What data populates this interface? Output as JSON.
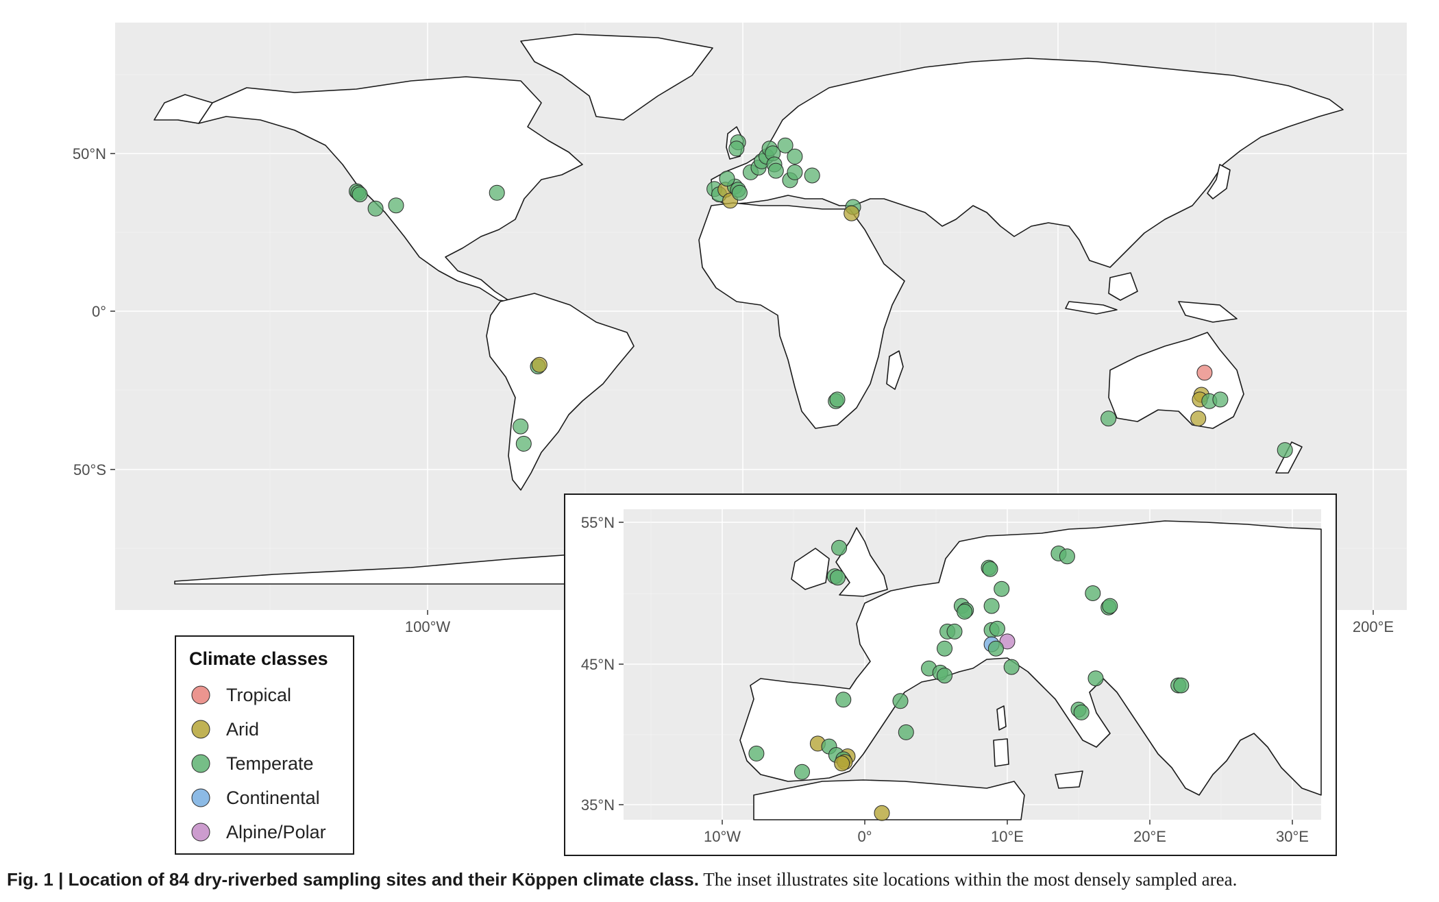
{
  "map": {
    "lat_labels": [
      "50°N",
      "0°",
      "50°S"
    ],
    "lon_labels": [
      "100°W",
      "200°E"
    ]
  },
  "inset": {
    "lat_labels": [
      "55°N",
      "45°N",
      "35°N"
    ],
    "lon_labels": [
      "10°W",
      "0°",
      "10°E",
      "20°E",
      "30°E"
    ]
  },
  "legend": {
    "title": "Climate classes",
    "items": [
      {
        "label": "Tropical",
        "color": "#E8837B"
      },
      {
        "label": "Arid",
        "color": "#B5A537"
      },
      {
        "label": "Temperate",
        "color": "#5EB372"
      },
      {
        "label": "Continental",
        "color": "#78AEE0"
      },
      {
        "label": "Alpine/Polar",
        "color": "#C38BC5"
      }
    ]
  },
  "caption": {
    "bold": "Fig. 1 | Location of 84 dry-riverbed sampling sites and their Köppen climate class.",
    "rest": " The inset illustrates site locations within the most densely sampled area."
  },
  "chart_data": {
    "type": "map",
    "main_map": {
      "lon_range": [
        -180,
        210
      ],
      "lat_range": [
        -90,
        90
      ],
      "sites": [
        {
          "lon": -122.5,
          "lat": 38.0,
          "class": "Temperate"
        },
        {
          "lon": -122.0,
          "lat": 37.5,
          "class": "Temperate"
        },
        {
          "lon": -121.5,
          "lat": 37.0,
          "class": "Temperate"
        },
        {
          "lon": -116.5,
          "lat": 32.5,
          "class": "Temperate"
        },
        {
          "lon": -110.0,
          "lat": 33.5,
          "class": "Temperate"
        },
        {
          "lon": -78.0,
          "lat": 37.5,
          "class": "Temperate"
        },
        {
          "lon": -65.0,
          "lat": -17.5,
          "class": "Temperate"
        },
        {
          "lon": -64.5,
          "lat": -17.0,
          "class": "Arid"
        },
        {
          "lon": -70.5,
          "lat": -36.5,
          "class": "Temperate"
        },
        {
          "lon": -69.5,
          "lat": -42.0,
          "class": "Temperate"
        },
        {
          "lon": -9.0,
          "lat": 38.7,
          "class": "Temperate"
        },
        {
          "lon": -7.5,
          "lat": 37.0,
          "class": "Temperate"
        },
        {
          "lon": -5.5,
          "lat": 38.5,
          "class": "Arid"
        },
        {
          "lon": -4.0,
          "lat": 35.0,
          "class": "Arid"
        },
        {
          "lon": -2.5,
          "lat": 39.5,
          "class": "Temperate"
        },
        {
          "lon": -1.5,
          "lat": 38.5,
          "class": "Temperate"
        },
        {
          "lon": -1.0,
          "lat": 37.5,
          "class": "Temperate"
        },
        {
          "lon": -5.0,
          "lat": 42.0,
          "class": "Temperate"
        },
        {
          "lon": -1.5,
          "lat": 53.5,
          "class": "Temperate"
        },
        {
          "lon": -2.0,
          "lat": 51.5,
          "class": "Temperate"
        },
        {
          "lon": 2.5,
          "lat": 44.0,
          "class": "Temperate"
        },
        {
          "lon": 5.0,
          "lat": 45.5,
          "class": "Temperate"
        },
        {
          "lon": 6.0,
          "lat": 47.5,
          "class": "Temperate"
        },
        {
          "lon": 7.5,
          "lat": 49.0,
          "class": "Temperate"
        },
        {
          "lon": 8.5,
          "lat": 51.5,
          "class": "Temperate"
        },
        {
          "lon": 9.5,
          "lat": 50.0,
          "class": "Temperate"
        },
        {
          "lon": 13.5,
          "lat": 52.5,
          "class": "Temperate"
        },
        {
          "lon": 16.5,
          "lat": 49.0,
          "class": "Temperate"
        },
        {
          "lon": 10.0,
          "lat": 46.5,
          "class": "Temperate"
        },
        {
          "lon": 10.5,
          "lat": 44.5,
          "class": "Temperate"
        },
        {
          "lon": 15.0,
          "lat": 41.5,
          "class": "Temperate"
        },
        {
          "lon": 16.5,
          "lat": 44.0,
          "class": "Temperate"
        },
        {
          "lon": 22.0,
          "lat": 43.0,
          "class": "Temperate"
        },
        {
          "lon": 35.0,
          "lat": 33.0,
          "class": "Temperate"
        },
        {
          "lon": 34.5,
          "lat": 31.0,
          "class": "Arid"
        },
        {
          "lon": 29.5,
          "lat": -28.5,
          "class": "Temperate"
        },
        {
          "lon": 30.0,
          "lat": -28.0,
          "class": "Temperate"
        },
        {
          "lon": 116.0,
          "lat": -34.0,
          "class": "Temperate"
        },
        {
          "lon": 146.5,
          "lat": -19.5,
          "class": "Tropical"
        },
        {
          "lon": 145.5,
          "lat": -26.5,
          "class": "Arid"
        },
        {
          "lon": 145.0,
          "lat": -28.0,
          "class": "Arid"
        },
        {
          "lon": 144.5,
          "lat": -34.0,
          "class": "Arid"
        },
        {
          "lon": 148.0,
          "lat": -28.5,
          "class": "Temperate"
        },
        {
          "lon": 151.5,
          "lat": -28.0,
          "class": "Temperate"
        },
        {
          "lon": 172.0,
          "lat": -44.0,
          "class": "Temperate"
        }
      ]
    },
    "inset_map": {
      "lon_range": [
        -17,
        32.5
      ],
      "lat_range": [
        34,
        56
      ],
      "sites": [
        {
          "lon": -1.8,
          "lat": 53.2,
          "class": "Temperate"
        },
        {
          "lon": -2.1,
          "lat": 51.2,
          "class": "Temperate"
        },
        {
          "lon": -1.9,
          "lat": 51.1,
          "class": "Temperate"
        },
        {
          "lon": 8.7,
          "lat": 51.8,
          "class": "Temperate"
        },
        {
          "lon": 8.8,
          "lat": 51.7,
          "class": "Temperate"
        },
        {
          "lon": 13.6,
          "lat": 52.8,
          "class": "Temperate"
        },
        {
          "lon": 14.2,
          "lat": 52.6,
          "class": "Temperate"
        },
        {
          "lon": 9.6,
          "lat": 50.3,
          "class": "Temperate"
        },
        {
          "lon": 16.0,
          "lat": 50.0,
          "class": "Temperate"
        },
        {
          "lon": 6.8,
          "lat": 49.1,
          "class": "Temperate"
        },
        {
          "lon": 7.1,
          "lat": 48.8,
          "class": "Temperate"
        },
        {
          "lon": 7.0,
          "lat": 48.7,
          "class": "Temperate"
        },
        {
          "lon": 8.9,
          "lat": 49.1,
          "class": "Temperate"
        },
        {
          "lon": 17.1,
          "lat": 49.0,
          "class": "Temperate"
        },
        {
          "lon": 17.2,
          "lat": 49.1,
          "class": "Temperate"
        },
        {
          "lon": 5.8,
          "lat": 47.3,
          "class": "Temperate"
        },
        {
          "lon": 6.3,
          "lat": 47.3,
          "class": "Temperate"
        },
        {
          "lon": 8.9,
          "lat": 47.4,
          "class": "Temperate"
        },
        {
          "lon": 9.3,
          "lat": 47.5,
          "class": "Temperate"
        },
        {
          "lon": 5.6,
          "lat": 46.1,
          "class": "Temperate"
        },
        {
          "lon": 8.9,
          "lat": 46.4,
          "class": "Continental"
        },
        {
          "lon": 10.0,
          "lat": 46.6,
          "class": "Alpine/Polar"
        },
        {
          "lon": 9.2,
          "lat": 46.1,
          "class": "Temperate"
        },
        {
          "lon": 4.5,
          "lat": 44.7,
          "class": "Temperate"
        },
        {
          "lon": 5.3,
          "lat": 44.4,
          "class": "Temperate"
        },
        {
          "lon": 5.6,
          "lat": 44.2,
          "class": "Temperate"
        },
        {
          "lon": 10.3,
          "lat": 44.8,
          "class": "Temperate"
        },
        {
          "lon": 16.2,
          "lat": 44.0,
          "class": "Temperate"
        },
        {
          "lon": 22.0,
          "lat": 43.5,
          "class": "Temperate"
        },
        {
          "lon": 22.2,
          "lat": 43.5,
          "class": "Temperate"
        },
        {
          "lon": -1.5,
          "lat": 42.5,
          "class": "Temperate"
        },
        {
          "lon": 2.5,
          "lat": 42.4,
          "class": "Temperate"
        },
        {
          "lon": 15.0,
          "lat": 41.8,
          "class": "Temperate"
        },
        {
          "lon": 15.2,
          "lat": 41.6,
          "class": "Temperate"
        },
        {
          "lon": 2.9,
          "lat": 40.2,
          "class": "Temperate"
        },
        {
          "lon": -3.3,
          "lat": 39.4,
          "class": "Arid"
        },
        {
          "lon": -2.5,
          "lat": 39.2,
          "class": "Temperate"
        },
        {
          "lon": -2.0,
          "lat": 38.6,
          "class": "Temperate"
        },
        {
          "lon": -1.2,
          "lat": 38.5,
          "class": "Arid"
        },
        {
          "lon": -1.5,
          "lat": 38.3,
          "class": "Temperate"
        },
        {
          "lon": -1.4,
          "lat": 38.1,
          "class": "Arid"
        },
        {
          "lon": -1.6,
          "lat": 38.0,
          "class": "Arid"
        },
        {
          "lon": -7.6,
          "lat": 38.7,
          "class": "Temperate"
        },
        {
          "lon": -4.4,
          "lat": 37.4,
          "class": "Temperate"
        },
        {
          "lon": 1.2,
          "lat": 34.5,
          "class": "Arid"
        }
      ]
    }
  }
}
